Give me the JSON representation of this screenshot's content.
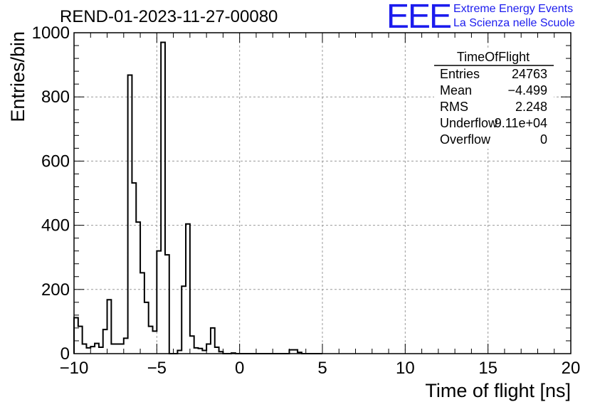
{
  "header": {
    "run_title": "REND-01-2023-11-27-00080"
  },
  "logo": {
    "mark": "EEE",
    "line1": "Extreme Energy Events",
    "line2": "La Scienza nelle Scuole",
    "color": "#1c1cee"
  },
  "stats_box": {
    "title": "TimeOfFlight",
    "rows": [
      {
        "label": "Entries",
        "value": "24763"
      },
      {
        "label": "Mean",
        "value": "−4.499"
      },
      {
        "label": "RMS",
        "value": "2.248"
      },
      {
        "label": "Underflow",
        "value": "9.11e+04"
      },
      {
        "label": "Overflow",
        "value": "0"
      }
    ]
  },
  "chart_data": {
    "type": "histogram",
    "xlabel": "Time of flight [ns]",
    "ylabel": "Entries/bin",
    "xlim": [
      -10,
      20
    ],
    "ylim": [
      0,
      1000
    ],
    "x_ticks": [
      "−10",
      "−5",
      "0",
      "5",
      "10",
      "15",
      "20"
    ],
    "x_tick_values": [
      -10,
      -5,
      0,
      5,
      10,
      15,
      20
    ],
    "y_ticks": [
      "0",
      "200",
      "400",
      "600",
      "800",
      "1000"
    ],
    "y_tick_values": [
      0,
      200,
      400,
      600,
      800,
      1000
    ],
    "grid": true,
    "bin_start": -10,
    "bin_width": 0.25,
    "counts": [
      112,
      85,
      30,
      18,
      22,
      32,
      20,
      75,
      168,
      30,
      30,
      30,
      48,
      868,
      532,
      410,
      252,
      160,
      85,
      70,
      320,
      970,
      308,
      0,
      0,
      10,
      210,
      404,
      55,
      18,
      16,
      10,
      30,
      80,
      20,
      6,
      0,
      0,
      2,
      0,
      0,
      0,
      0,
      0,
      0,
      0,
      0,
      0,
      0,
      0,
      0,
      0,
      12,
      12,
      4,
      0,
      0,
      0,
      0,
      0
    ]
  }
}
